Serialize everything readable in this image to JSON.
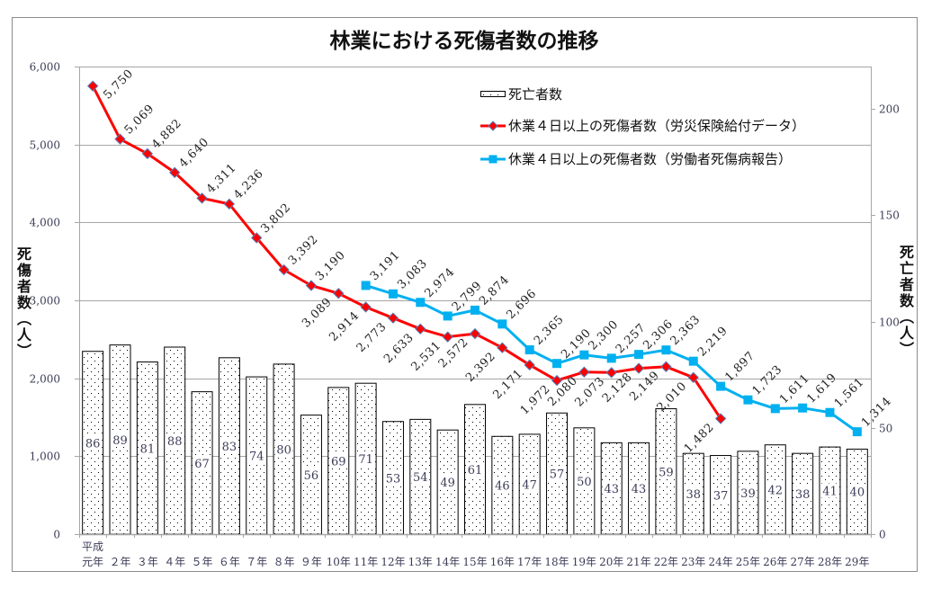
{
  "chart_data": {
    "type": "bar",
    "combo": true,
    "title": "林業における死傷者数の推移",
    "category_prefix": "平成",
    "categories": [
      "元年",
      "２年",
      "３年",
      "４年",
      "５年",
      "６年",
      "７年",
      "８年",
      "９年",
      "10年",
      "11年",
      "12年",
      "13年",
      "14年",
      "15年",
      "16年",
      "17年",
      "18年",
      "19年",
      "20年",
      "21年",
      "22年",
      "23年",
      "24年",
      "25年",
      "26年",
      "27年",
      "28年",
      "29年"
    ],
    "xlabel": "",
    "y_left": {
      "label": "死傷者数（人）",
      "range": [
        0,
        6000
      ],
      "ticks": [
        0,
        1000,
        2000,
        3000,
        4000,
        5000,
        6000
      ],
      "tick_labels": [
        "0",
        "1,000",
        "2,000",
        "3,000",
        "4,000",
        "5,000",
        "6,000"
      ]
    },
    "y_right": {
      "label": "死亡者数（人）",
      "range": [
        0,
        220
      ],
      "ticks": [
        0,
        50,
        100,
        150,
        200
      ],
      "tick_labels": [
        "0",
        "50",
        "100",
        "150",
        "200"
      ]
    },
    "grid": true,
    "legend": "top-right",
    "series": [
      {
        "name": "死亡者数",
        "type": "bar",
        "axis": "right",
        "fill": "dotted",
        "values": [
          86,
          89,
          81,
          88,
          67,
          83,
          74,
          80,
          56,
          69,
          71,
          53,
          54,
          49,
          61,
          46,
          47,
          57,
          50,
          43,
          43,
          59,
          38,
          37,
          39,
          42,
          38,
          41,
          40
        ]
      },
      {
        "name": "休業４日以上の死傷者数（労災保険給付データ）",
        "type": "line",
        "axis": "left",
        "color": "#FF0000",
        "marker": "diamond",
        "marker_edge": "#4F81BD",
        "values": [
          5750,
          5069,
          4882,
          4640,
          4311,
          4236,
          3802,
          3392,
          3190,
          3089,
          2914,
          2773,
          2633,
          2531,
          2572,
          2392,
          2171,
          1972,
          2080,
          2073,
          2128,
          2149,
          2010,
          1482,
          null,
          null,
          null,
          null,
          null
        ],
        "labels": [
          "5,750",
          "5,069",
          "4,882",
          "4,640",
          "4,311",
          "4,236",
          "3,802",
          "3,392",
          "3,190",
          "3,089",
          "2,914",
          "2,773",
          "2,633",
          "2,531",
          "2,572",
          "2,392",
          "2,171",
          "1,972",
          "2,080",
          "2,073",
          "2,128",
          "2,149",
          "2,010",
          "1,482",
          null,
          null,
          null,
          null,
          null
        ],
        "label_positions": [
          "right",
          "above-right",
          "above-right",
          "above-right",
          "above-right",
          "above-right",
          "above-right",
          "above-right",
          "above-right",
          "below-left",
          "below-left",
          "below-left",
          "below-left",
          "below-left",
          "below-left",
          "below-left",
          "below-left",
          "below-left",
          "below-left",
          "below-left",
          "below-left",
          "below-left",
          "below-left",
          "below-left",
          null,
          null,
          null,
          null,
          null
        ]
      },
      {
        "name": "休業４日以上の死傷者数（労働者死傷病報告）",
        "type": "line",
        "axis": "left",
        "color": "#00B0F0",
        "marker": "square",
        "values": [
          null,
          null,
          null,
          null,
          null,
          null,
          null,
          null,
          null,
          null,
          3191,
          3083,
          2974,
          2799,
          2874,
          2696,
          2365,
          2190,
          2300,
          2257,
          2306,
          2363,
          2219,
          1897,
          1723,
          1611,
          1619,
          1561,
          1314
        ],
        "labels": [
          null,
          null,
          null,
          null,
          null,
          null,
          null,
          null,
          null,
          null,
          "3,191",
          "3,083",
          "2,974",
          "2,799",
          "2,874",
          "2,696",
          "2,365",
          "2,190",
          "2,300",
          "2,257",
          "2,306",
          "2,363",
          "2,219",
          "1,897",
          "1,723",
          "1,611",
          "1,619",
          "1,561",
          "1,314"
        ],
        "label_positions": [
          null,
          null,
          null,
          null,
          null,
          null,
          null,
          null,
          null,
          null,
          "above-right",
          "above-right",
          "above-right",
          "above-right",
          "above-right",
          "above-right",
          "above-right",
          "above-right",
          "above-right",
          "above-right",
          "above-right",
          "above-right",
          "above-right",
          "above-right",
          "above-right",
          "above-right",
          "above-right",
          "above-right",
          "above-right"
        ]
      }
    ]
  }
}
